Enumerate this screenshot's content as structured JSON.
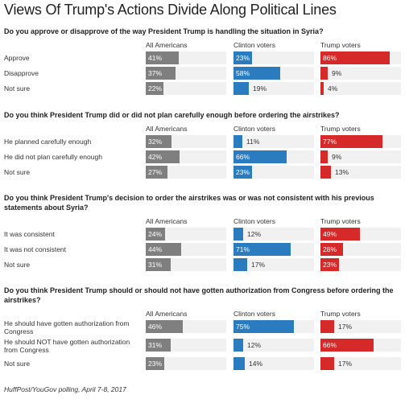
{
  "title": "Views Of Trump's Actions Divide Along Political Lines",
  "footer": "HuffPost/YouGov polling, April 7-8, 2017",
  "colors": {
    "all_americans": "#7f7f7f",
    "clinton_voters": "#2b7bbf",
    "trump_voters": "#d62a2a",
    "cell_background": "#f1f1f1"
  },
  "chart_data": {
    "type": "bar",
    "groups": [
      "All Americans",
      "Clinton voters",
      "Trump voters"
    ],
    "xlim": [
      0,
      100
    ],
    "unit": "%",
    "questions": [
      {
        "question": "Do you approve or disapprove of the way President Trump is handling the situation in Syria?",
        "categories": [
          "Approve",
          "Disapprove",
          "Not sure"
        ],
        "series": [
          {
            "name": "All Americans",
            "values": [
              41,
              37,
              22
            ]
          },
          {
            "name": "Clinton voters",
            "values": [
              23,
              58,
              19
            ]
          },
          {
            "name": "Trump voters",
            "values": [
              86,
              9,
              4
            ]
          }
        ]
      },
      {
        "question": "Do you think President Trump did or did not plan carefully enough before ordering the airstrikes?",
        "categories": [
          "He planned carefully enough",
          "He did not plan carefully enough",
          "Not sure"
        ],
        "series": [
          {
            "name": "All Americans",
            "values": [
              32,
              42,
              27
            ]
          },
          {
            "name": "Clinton voters",
            "values": [
              11,
              66,
              23
            ]
          },
          {
            "name": "Trump voters",
            "values": [
              77,
              9,
              13
            ]
          }
        ]
      },
      {
        "question": "Do you think President Trump's decision to order the airstrikes was or was not consistent with his previous statements about Syria?",
        "categories": [
          "It was consistent",
          "It was not consistent",
          "Not sure"
        ],
        "series": [
          {
            "name": "All Americans",
            "values": [
              24,
              44,
              31
            ]
          },
          {
            "name": "Clinton voters",
            "values": [
              12,
              71,
              17
            ]
          },
          {
            "name": "Trump voters",
            "values": [
              49,
              28,
              23
            ]
          }
        ]
      },
      {
        "question": "Do you think President Trump should or should not have gotten authorization from Congress before ordering the airstrikes?",
        "categories": [
          "He should have gotten authorization from Congress",
          "He should NOT have gotten authorization from Congress",
          "Not sure"
        ],
        "series": [
          {
            "name": "All Americans",
            "values": [
              46,
              31,
              23
            ]
          },
          {
            "name": "Clinton voters",
            "values": [
              75,
              12,
              14
            ]
          },
          {
            "name": "Trump voters",
            "values": [
              17,
              66,
              17
            ]
          }
        ]
      }
    ]
  }
}
